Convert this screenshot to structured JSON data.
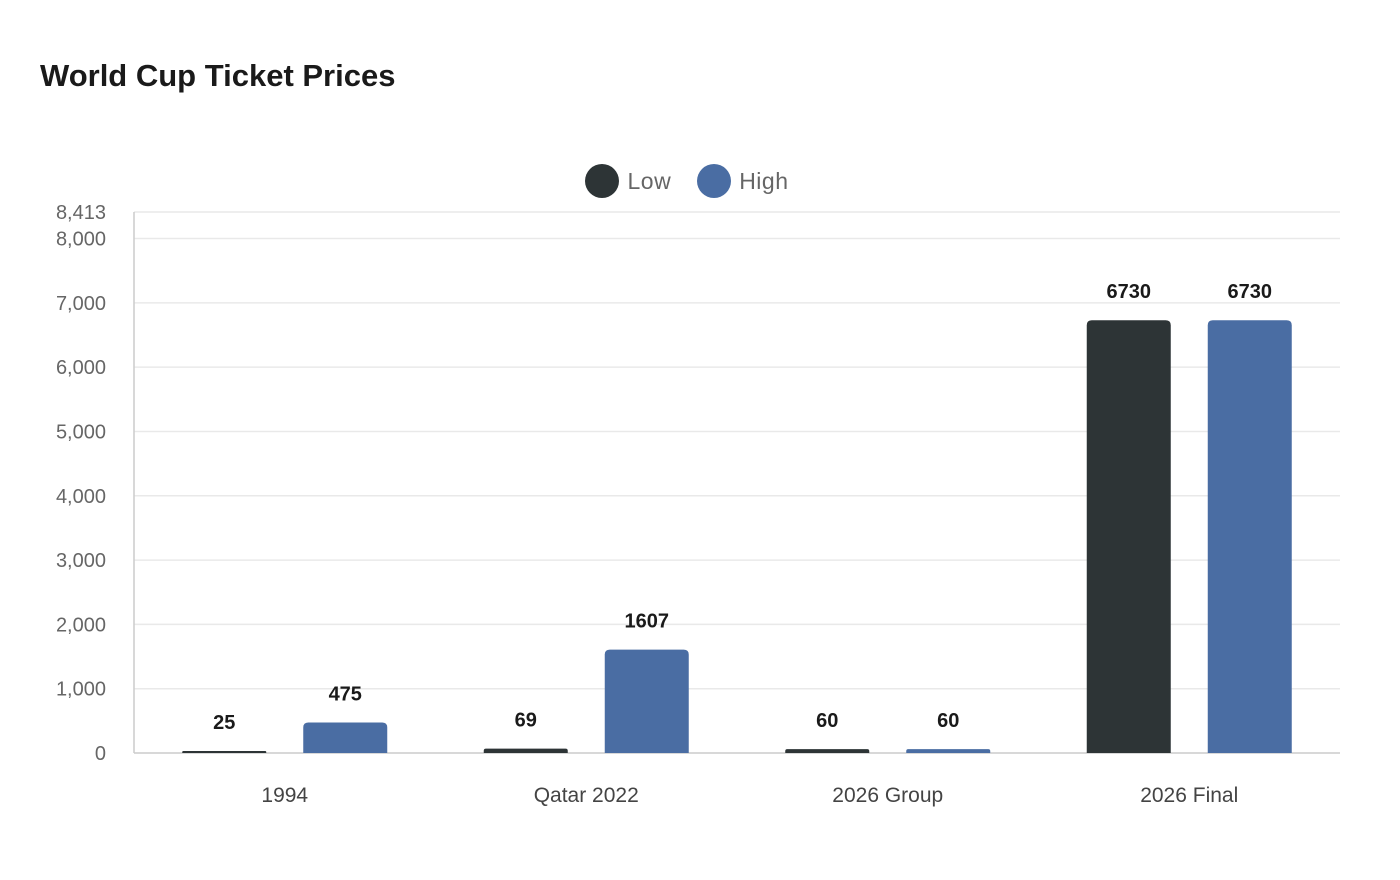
{
  "title": "World Cup Ticket Prices",
  "colors": {
    "low": "#2d3436",
    "high": "#4a6da3",
    "grid": "#e9e9e9",
    "axis": "#cccccc"
  },
  "chart_data": {
    "type": "bar",
    "title": "World Cup Ticket Prices",
    "xlabel": "",
    "ylabel": "",
    "categories": [
      "1994",
      "Qatar 2022",
      "2026 Group",
      "2026 Final"
    ],
    "series": [
      {
        "name": "Low",
        "values": [
          25,
          69,
          60,
          6730
        ]
      },
      {
        "name": "High",
        "values": [
          475,
          1607,
          60,
          6730
        ]
      }
    ],
    "ylim": [
      0,
      8413
    ],
    "yticks": [
      "0",
      "1,000",
      "2,000",
      "3,000",
      "4,000",
      "5,000",
      "6,000",
      "7,000",
      "8,000",
      "8,413"
    ],
    "ytick_values": [
      0,
      1000,
      2000,
      3000,
      4000,
      5000,
      6000,
      7000,
      8000,
      8413
    ],
    "legend_position": "top-center",
    "grid": true
  }
}
